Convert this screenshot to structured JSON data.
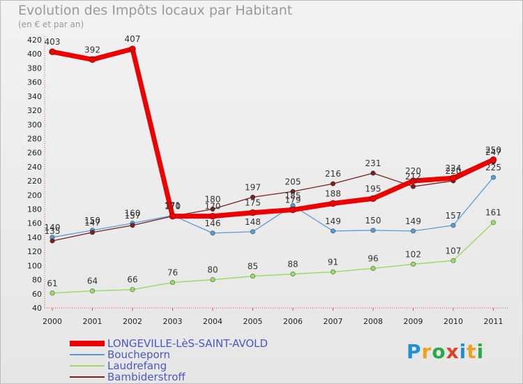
{
  "header": {
    "title": "Evolution des Impôts locaux par Habitant",
    "subtitle": "(en € et par an)"
  },
  "logo": {
    "text": "Proxiti",
    "colors": [
      "#1f8fd6",
      "#f0a020",
      "#2aa84a",
      "#e0402a",
      "#1f8fd6",
      "#f0a020",
      "#2aa84a"
    ]
  },
  "chart_data": {
    "type": "line",
    "x": [
      "2000",
      "2001",
      "2002",
      "2003",
      "2004",
      "2005",
      "2006",
      "2007",
      "2008",
      "2009",
      "2010",
      "2011"
    ],
    "ylim": [
      40,
      420
    ],
    "yticks": [
      40,
      60,
      80,
      100,
      120,
      140,
      160,
      180,
      200,
      220,
      240,
      260,
      280,
      300,
      320,
      340,
      360,
      380,
      400,
      420
    ],
    "grid": false,
    "legend_placement": "bottom-left",
    "series": [
      {
        "name": "LONGEVILLE-LèS-SAINT-AVOLD",
        "color": "#ee0000",
        "values": [
          403,
          392,
          407,
          170,
          170,
          175,
          179,
          188,
          195,
          220,
          224,
          250
        ]
      },
      {
        "name": "Boucheporn",
        "color": "#5a9bd4",
        "values": [
          140,
          150,
          160,
          171,
          146,
          148,
          185,
          149,
          150,
          149,
          157,
          225
        ]
      },
      {
        "name": "Laudrefang",
        "color": "#99dd66",
        "values": [
          61,
          64,
          66,
          76,
          80,
          85,
          88,
          91,
          96,
          102,
          107,
          161
        ]
      },
      {
        "name": "Bambiderstroff",
        "color": "#7a2020",
        "values": [
          135,
          147,
          157,
          170,
          180,
          197,
          205,
          216,
          231,
          212,
          220,
          247
        ]
      }
    ]
  }
}
